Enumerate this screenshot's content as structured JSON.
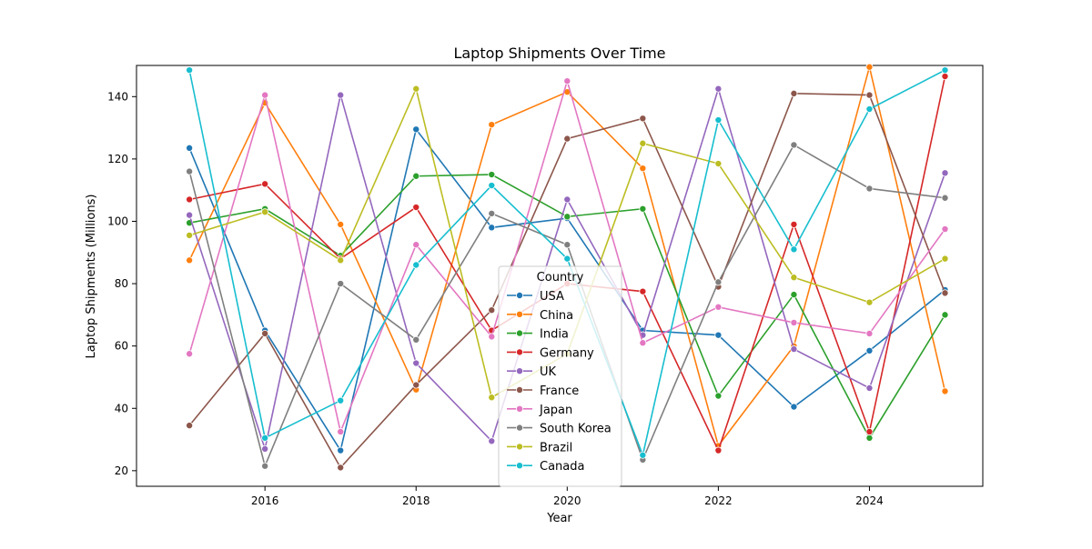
{
  "chart_data": {
    "type": "line",
    "title": "Laptop Shipments Over Time",
    "xlabel": "Year",
    "ylabel": "Laptop Shipments (Millions)",
    "x": [
      2015,
      2016,
      2017,
      2018,
      2019,
      2020,
      2021,
      2022,
      2023,
      2024,
      2025
    ],
    "xlim": [
      2014.3,
      2025.5
    ],
    "ylim": [
      15,
      150
    ],
    "xticks": [
      "2016",
      "2018",
      "2020",
      "2022",
      "2024"
    ],
    "yticks": [
      "20",
      "40",
      "60",
      "80",
      "100",
      "120",
      "140"
    ],
    "grid": false,
    "legend": {
      "title": "Country",
      "placement": "center-bottom"
    },
    "series": [
      {
        "name": "USA",
        "color": "#1f77b4",
        "values": [
          123.5,
          65,
          26.5,
          129.5,
          98,
          101,
          65,
          63.5,
          40.5,
          58.5,
          78
        ]
      },
      {
        "name": "China",
        "color": "#ff7f0e",
        "values": [
          87.5,
          138,
          99,
          46,
          131,
          141.5,
          117,
          28,
          60,
          149.5,
          45.5
        ]
      },
      {
        "name": "India",
        "color": "#2ca02c",
        "values": [
          99.5,
          104,
          89,
          114.5,
          115,
          101.5,
          104,
          44,
          76.5,
          30.5,
          70
        ]
      },
      {
        "name": "Germany",
        "color": "#d62728",
        "values": [
          107,
          112,
          88,
          104.5,
          65,
          80,
          77.5,
          26.5,
          99,
          32.5,
          146.5
        ]
      },
      {
        "name": "UK",
        "color": "#9467bd",
        "values": [
          102,
          27,
          140.5,
          54.5,
          29.5,
          107,
          63.5,
          142.5,
          59,
          46.5,
          115.5
        ]
      },
      {
        "name": "France",
        "color": "#8c564b",
        "values": [
          34.5,
          64,
          21,
          47.5,
          71.5,
          126.5,
          133,
          79,
          141,
          140.5,
          77
        ]
      },
      {
        "name": "Japan",
        "color": "#e377c2",
        "values": [
          57.5,
          140.5,
          32.5,
          92.5,
          63,
          145,
          61,
          72.5,
          67.5,
          64,
          97.5
        ]
      },
      {
        "name": "South Korea",
        "color": "#7f7f7f",
        "values": [
          116,
          21.5,
          80,
          62,
          102.5,
          92.5,
          23.5,
          80.5,
          124.5,
          110.5,
          107.5
        ]
      },
      {
        "name": "Brazil",
        "color": "#bcbd22",
        "values": [
          95.5,
          103,
          87.5,
          142.5,
          43.5,
          57.5,
          125,
          118.5,
          82,
          74,
          88
        ]
      },
      {
        "name": "Canada",
        "color": "#17becf",
        "values": [
          148.5,
          30.5,
          42.5,
          86,
          111.5,
          88,
          25,
          132.5,
          91,
          136,
          148.5
        ]
      }
    ]
  }
}
